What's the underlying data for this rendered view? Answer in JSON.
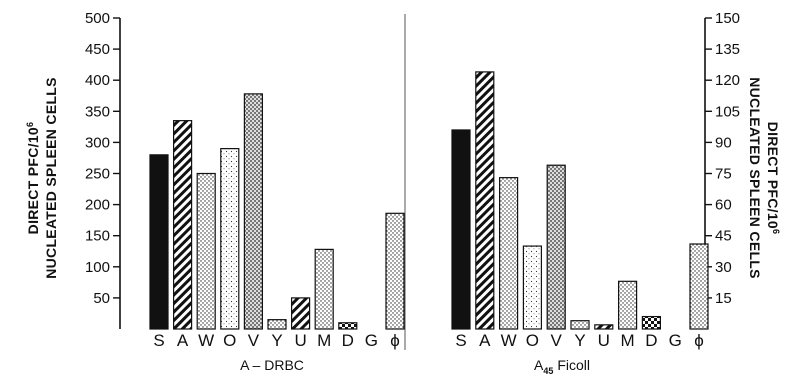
{
  "chart_data": [
    {
      "type": "bar",
      "title": "A – DRBC",
      "ylabel": [
        "DIRECT PFC/10",
        "NUCLEATED SPLEEN CELLS"
      ],
      "ylabel_superscript": "6",
      "ylim": [
        0,
        500
      ],
      "yticks": [
        50,
        100,
        150,
        200,
        250,
        300,
        350,
        400,
        450,
        500
      ],
      "categories": [
        "S",
        "A",
        "W",
        "O",
        "V",
        "Y",
        "U",
        "M",
        "D",
        "G",
        "ϕ"
      ],
      "values": [
        280,
        335,
        250,
        290,
        378,
        15,
        50,
        128,
        10,
        0,
        186
      ],
      "patterns": [
        "solid",
        "diagonal",
        "dots",
        "dots-light",
        "dots-dense",
        "dots",
        "diagonal",
        "dots",
        "cross",
        "none",
        "dots"
      ]
    },
    {
      "type": "bar",
      "title": "A",
      "title_subscript": "45",
      "title_suffix": "Ficoll",
      "ylabel": [
        "DIRECT PFC/10",
        "NUCLEATED SPLEEN CELLS"
      ],
      "ylabel_superscript": "6",
      "ylim": [
        0,
        150
      ],
      "yticks": [
        15,
        30,
        45,
        60,
        75,
        90,
        105,
        120,
        135,
        150
      ],
      "categories": [
        "S",
        "A",
        "W",
        "O",
        "V",
        "Y",
        "U",
        "M",
        "D",
        "G",
        "ϕ"
      ],
      "values": [
        96,
        124,
        73,
        40,
        79,
        4,
        2,
        23,
        6,
        0,
        41
      ],
      "patterns": [
        "solid",
        "diagonal",
        "dots",
        "dots-light",
        "dots-dense",
        "dots",
        "diagonal",
        "dots",
        "cross",
        "none",
        "dots"
      ]
    }
  ]
}
